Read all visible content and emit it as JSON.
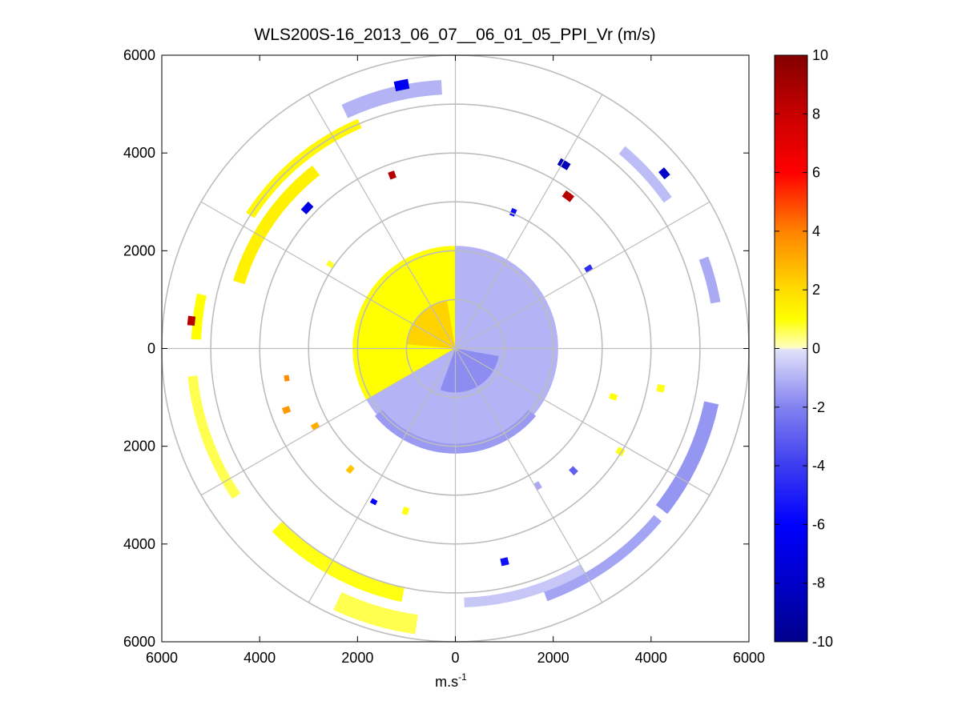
{
  "chart_data": {
    "type": "heatmap",
    "subtype": "polar-ppi",
    "title": "WLS200S-16_2013_06_07__06_01_05_PPI_Vr (m/s)",
    "xlabel_base": "m.s",
    "xlabel_sup": "-1",
    "ylabel": "",
    "xlim": [
      -6000,
      6000
    ],
    "ylim": [
      -6000,
      6000
    ],
    "x_ticks": [
      {
        "value": -6000,
        "label": "6000"
      },
      {
        "value": -4000,
        "label": "4000"
      },
      {
        "value": -2000,
        "label": "2000"
      },
      {
        "value": 0,
        "label": "0"
      },
      {
        "value": 2000,
        "label": "2000"
      },
      {
        "value": 4000,
        "label": "4000"
      },
      {
        "value": 6000,
        "label": "6000"
      }
    ],
    "y_ticks": [
      {
        "value": 6000,
        "label": "6000"
      },
      {
        "value": 4000,
        "label": "4000"
      },
      {
        "value": 2000,
        "label": "2000"
      },
      {
        "value": 0,
        "label": "0"
      },
      {
        "value": -2000,
        "label": "2000"
      },
      {
        "value": -4000,
        "label": "4000"
      },
      {
        "value": -6000,
        "label": "6000"
      }
    ],
    "range_rings": [
      1000,
      2000,
      3000,
      4000,
      5000,
      6000
    ],
    "spoke_angles_deg": [
      0,
      30,
      60,
      90,
      120,
      150,
      180,
      210,
      240,
      270,
      300,
      330
    ],
    "colorbar": {
      "min": -10,
      "max": 10,
      "ticks": [
        {
          "value": 10,
          "label": "10"
        },
        {
          "value": 8,
          "label": "8"
        },
        {
          "value": 6,
          "label": "6"
        },
        {
          "value": 4,
          "label": "4"
        },
        {
          "value": 2,
          "label": "2"
        },
        {
          "value": 0,
          "label": "0"
        },
        {
          "value": -2,
          "label": "-2"
        },
        {
          "value": -4,
          "label": "-4"
        },
        {
          "value": -6,
          "label": "-6"
        },
        {
          "value": -8,
          "label": "-8"
        },
        {
          "value": -10,
          "label": "-10"
        }
      ]
    },
    "sectors": [
      {
        "r0": 0,
        "r1": 2100,
        "a0": 90,
        "a1": 210,
        "v": 1.0
      },
      {
        "r0": 0,
        "r1": 1000,
        "a0": 100,
        "a1": 175,
        "v": 2.2
      },
      {
        "r0": 0,
        "r1": 2100,
        "a0": -150,
        "a1": 90,
        "v": -1.0
      },
      {
        "r0": 0,
        "r1": 900,
        "a0": -110,
        "a1": -10,
        "v": -1.8
      },
      {
        "r0": 1950,
        "r1": 2150,
        "a0": -140,
        "a1": -40,
        "v": -1.5
      },
      {
        "r0": 5200,
        "r1": 5500,
        "a0": 93,
        "a1": 115,
        "v": -1.0
      },
      {
        "r0": 4900,
        "r1": 5100,
        "a0": 113,
        "a1": 147,
        "v": 1.2
      },
      {
        "r0": 4500,
        "r1": 4750,
        "a0": 128,
        "a1": 163,
        "v": 1.4
      },
      {
        "r0": 5200,
        "r1": 5400,
        "a0": 168,
        "a1": 178,
        "v": 1.0
      },
      {
        "r0": 5300,
        "r1": 5500,
        "a0": 186,
        "a1": 214,
        "v": 0.6
      },
      {
        "r0": 5500,
        "r1": 5900,
        "a0": 245,
        "a1": 262,
        "v": 0.6
      },
      {
        "r0": 5000,
        "r1": 5300,
        "a0": 225,
        "a1": 258,
        "v": 0.9
      },
      {
        "r0": 5100,
        "r1": 5300,
        "a0": 272,
        "a1": 300,
        "v": -0.6
      },
      {
        "r0": 5300,
        "r1": 5500,
        "a0": 290,
        "a1": 320,
        "v": -1.3
      },
      {
        "r0": 5200,
        "r1": 5500,
        "a0": 322,
        "a1": 348,
        "v": -1.6
      },
      {
        "r0": 5300,
        "r1": 5500,
        "a0": 10,
        "a1": 20,
        "v": -1.2
      },
      {
        "r0": 5200,
        "r1": 5400,
        "a0": 35,
        "a1": 50,
        "v": -0.8
      },
      {
        "r0": 5400,
        "r1": 5600,
        "a0": 100,
        "a1": 103,
        "v": -6.5
      },
      {
        "r0": 3700,
        "r1": 3850,
        "a0": 109,
        "a1": 111,
        "v": 8.5
      },
      {
        "r0": 4300,
        "r1": 4450,
        "a0": 58,
        "a1": 61,
        "v": -8.5
      },
      {
        "r0": 3800,
        "r1": 3950,
        "a0": 52,
        "a1": 55,
        "v": 8.5
      },
      {
        "r0": 5500,
        "r1": 5650,
        "a0": 39,
        "a1": 41,
        "v": -8.0
      },
      {
        "r0": 4100,
        "r1": 4250,
        "a0": 135,
        "a1": 138,
        "v": -7.0
      },
      {
        "r0": 5350,
        "r1": 5500,
        "a0": 173,
        "a1": 175,
        "v": 8.5
      },
      {
        "r0": 3450,
        "r1": 3550,
        "a0": 189,
        "a1": 191,
        "v": 3.8
      },
      {
        "r0": 3600,
        "r1": 3750,
        "a0": 199,
        "a1": 201,
        "v": 3.5
      },
      {
        "r0": 3200,
        "r1": 3350,
        "a0": 208,
        "a1": 210,
        "v": 3.0
      },
      {
        "r0": 3500,
        "r1": 3600,
        "a0": 241,
        "a1": 243,
        "v": -6.0
      },
      {
        "r0": 4400,
        "r1": 4550,
        "a0": 282,
        "a1": 284,
        "v": -5.5
      },
      {
        "r0": 2950,
        "r1": 3100,
        "a0": 66,
        "a1": 68,
        "v": -5.5
      },
      {
        "r0": 3100,
        "r1": 3250,
        "a0": 30,
        "a1": 32,
        "v": -4.5
      },
      {
        "r0": 3200,
        "r1": 3350,
        "a0": 228,
        "a1": 230,
        "v": 2.5
      },
      {
        "r0": 3400,
        "r1": 3550,
        "a0": 313,
        "a1": 315,
        "v": -3.0
      },
      {
        "r0": 3300,
        "r1": 3450,
        "a0": 342,
        "a1": 344,
        "v": 1.0
      },
      {
        "r0": 4200,
        "r1": 4350,
        "a0": 348,
        "a1": 350,
        "v": 0.9
      },
      {
        "r0": 3000,
        "r1": 3150,
        "a0": 145,
        "a1": 147,
        "v": 0.8
      },
      {
        "r0": 3900,
        "r1": 4050,
        "a0": 327,
        "a1": 329,
        "v": 0.9
      },
      {
        "r0": 3400,
        "r1": 3550,
        "a0": 252,
        "a1": 254,
        "v": 0.9
      },
      {
        "r0": 3200,
        "r1": 3350,
        "a0": 300,
        "a1": 302,
        "v": -1.2
      }
    ]
  }
}
